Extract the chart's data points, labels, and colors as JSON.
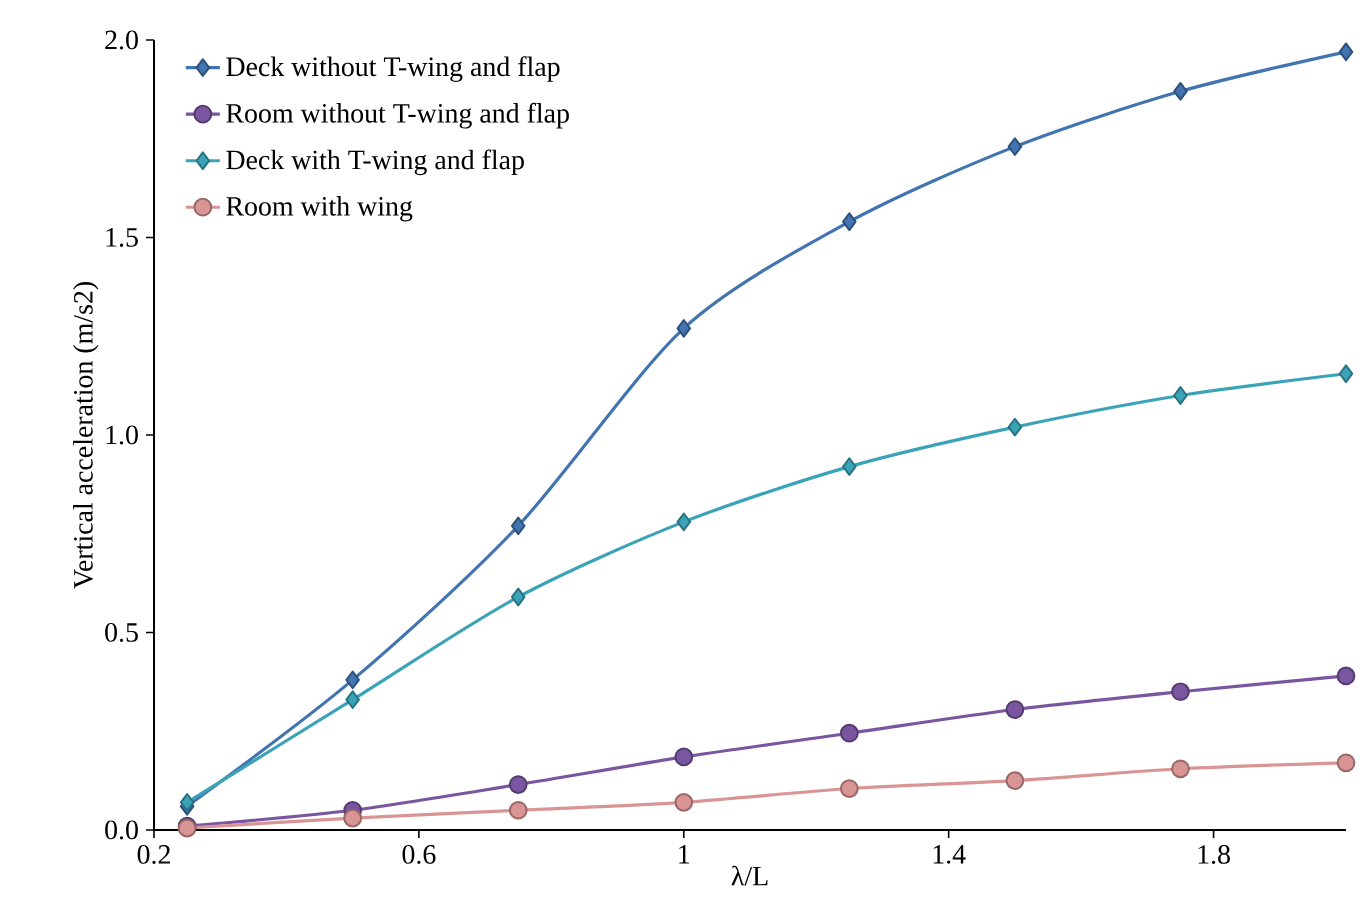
{
  "chart_data": {
    "type": "line",
    "xlabel": "λ/L",
    "ylabel": "Vertical acceleration (m/s2)",
    "x": [
      0.25,
      0.5,
      0.75,
      1.0,
      1.25,
      1.5,
      1.75,
      2.0
    ],
    "series": [
      {
        "name": "Deck without T-wing and flap",
        "color": "#4174b0",
        "marker": "diamond",
        "values": [
          0.06,
          0.38,
          0.77,
          1.27,
          1.54,
          1.73,
          1.87,
          1.97
        ]
      },
      {
        "name": "Room without T-wing and flap",
        "color": "#7a55a0",
        "marker": "circle",
        "values": [
          0.01,
          0.05,
          0.115,
          0.185,
          0.245,
          0.305,
          0.35,
          0.39
        ]
      },
      {
        "name": "Deck with T-wing and flap",
        "color": "#3ba3b8",
        "marker": "diamond",
        "values": [
          0.07,
          0.33,
          0.59,
          0.78,
          0.92,
          1.02,
          1.1,
          1.155
        ]
      },
      {
        "name": "Room with wing",
        "color": "#d99594",
        "marker": "circle",
        "values": [
          0.005,
          0.03,
          0.05,
          0.07,
          0.105,
          0.125,
          0.155,
          0.17
        ]
      }
    ],
    "xlim": [
      0.2,
      2.0
    ],
    "ylim": [
      0,
      2.0
    ],
    "xticks": [
      0.2,
      0.6,
      1,
      1.4,
      1.8
    ],
    "yticks": [
      {
        "value": 0,
        "label": "0.0"
      },
      {
        "value": 0.5,
        "label": "0.5"
      },
      {
        "value": 1.0,
        "label": "1.0"
      },
      {
        "value": 1.5,
        "label": "1.5"
      },
      {
        "value": 2.0,
        "label": "2.0"
      }
    ],
    "legend": "top left",
    "grid": false,
    "line_style": "solid"
  }
}
